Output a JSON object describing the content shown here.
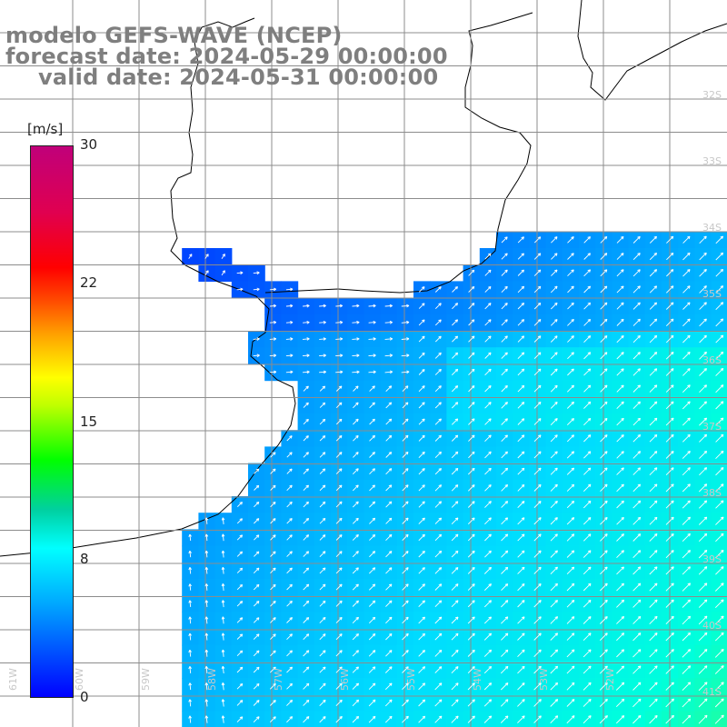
{
  "header": {
    "line1": "modelo GEFS-WAVE (NCEP)",
    "line2": "forecast date: 2024-05-29 00:00:00",
    "line3": "valid date: 2024-05-31 00:00:00"
  },
  "colorbar": {
    "unit": "[m/s]",
    "ticks": [
      "30",
      "22",
      "15",
      "8",
      "0"
    ],
    "colors": [
      "#0000ff",
      "#00a8ff",
      "#00ffff",
      "#00ff00",
      "#ffff00",
      "#ff9f00",
      "#ff0000",
      "#c0007a"
    ]
  },
  "lat_labels": [
    "32S",
    "33S",
    "34S",
    "35S",
    "36S",
    "37S",
    "38S",
    "39S",
    "40S",
    "41S"
  ],
  "lon_labels": [
    "61W",
    "60W",
    "59W",
    "58W",
    "57W",
    "56W",
    "55W",
    "54W",
    "53W",
    "52W"
  ],
  "colors": {
    "land": "#ffffff",
    "grid": "#8c8c8c",
    "coast": "#000000",
    "arrows": "#ffffff"
  }
}
